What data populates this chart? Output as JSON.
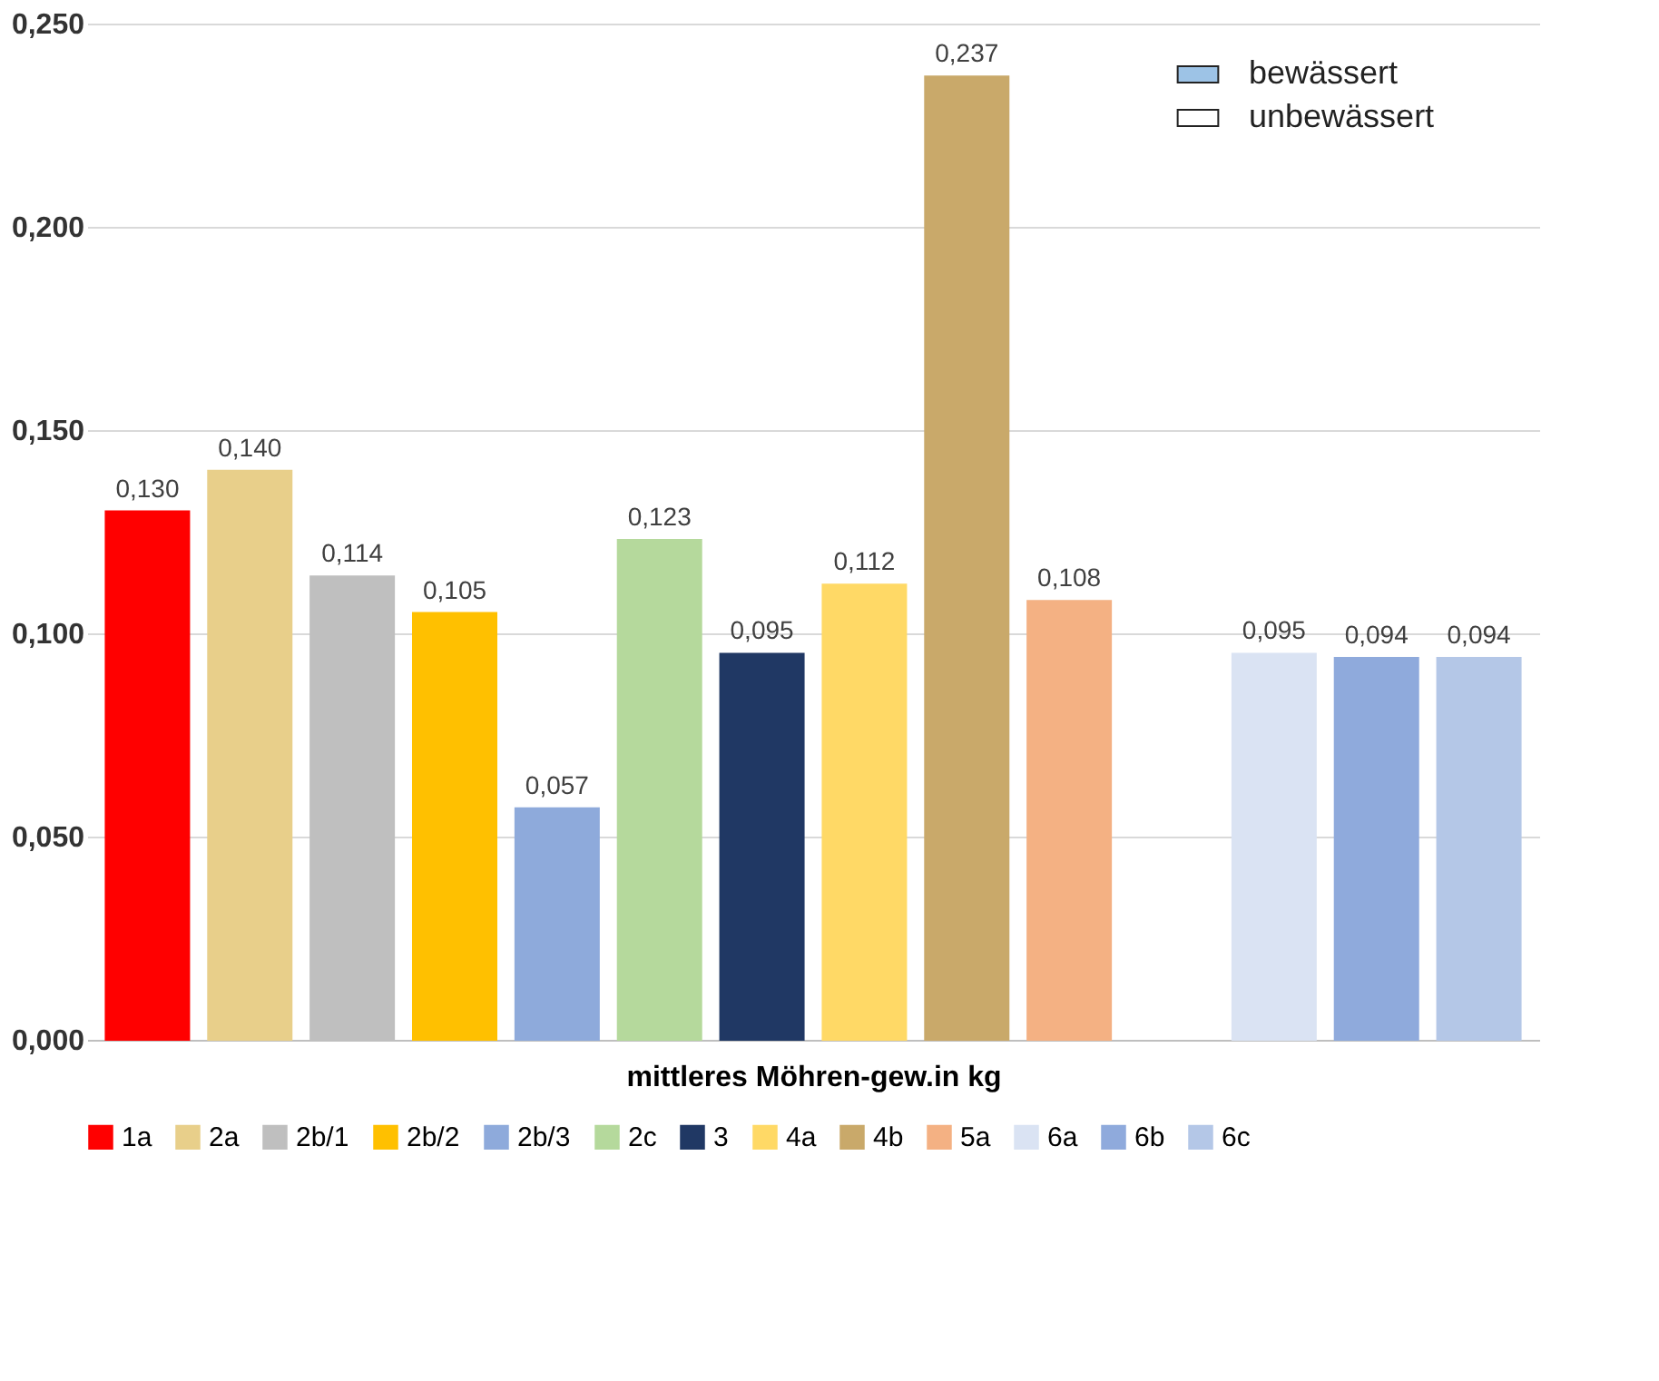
{
  "chart_data": {
    "type": "bar",
    "xlabel": "mittleres Möhren-gew.in kg",
    "categories": [
      null,
      null,
      null,
      null,
      null,
      null,
      null,
      null,
      null,
      null,
      null,
      null,
      null,
      null
    ],
    "series": [
      {
        "name": "1a",
        "color": "#ff0000",
        "values": [
          0.13,
          null,
          null,
          null,
          null,
          null,
          null,
          null,
          null,
          null,
          null,
          null,
          null,
          null
        ],
        "value_labels": [
          "0,130",
          null,
          null,
          null,
          null,
          null,
          null,
          null,
          null,
          null,
          null,
          null,
          null,
          null
        ]
      },
      {
        "name": "2a",
        "color": "#e8cf8a",
        "values": [
          null,
          0.14,
          null,
          null,
          null,
          null,
          null,
          null,
          null,
          null,
          null,
          null,
          null,
          null
        ],
        "value_labels": [
          null,
          "0,140",
          null,
          null,
          null,
          null,
          null,
          null,
          null,
          null,
          null,
          null,
          null,
          null
        ]
      },
      {
        "name": "2b/1",
        "color": "#bfbfbf",
        "values": [
          null,
          null,
          0.114,
          null,
          null,
          null,
          null,
          null,
          null,
          null,
          null,
          null,
          null,
          null
        ],
        "value_labels": [
          null,
          null,
          "0,114",
          null,
          null,
          null,
          null,
          null,
          null,
          null,
          null,
          null,
          null,
          null
        ]
      },
      {
        "name": "2b/2",
        "color": "#ffc000",
        "values": [
          null,
          null,
          null,
          0.105,
          null,
          null,
          null,
          null,
          null,
          null,
          null,
          null,
          null,
          null
        ],
        "value_labels": [
          null,
          null,
          null,
          "0,105",
          null,
          null,
          null,
          null,
          null,
          null,
          null,
          null,
          null,
          null
        ]
      },
      {
        "name": "2b/3",
        "color": "#8eaadb",
        "values": [
          null,
          null,
          null,
          null,
          0.057,
          null,
          null,
          null,
          null,
          null,
          null,
          null,
          null,
          null
        ],
        "value_labels": [
          null,
          null,
          null,
          null,
          "0,057",
          null,
          null,
          null,
          null,
          null,
          null,
          null,
          null,
          null
        ]
      },
      {
        "name": "2c",
        "color": "#b5d99c",
        "values": [
          null,
          null,
          null,
          null,
          null,
          0.123,
          null,
          null,
          null,
          null,
          null,
          null,
          null,
          null
        ],
        "value_labels": [
          null,
          null,
          null,
          null,
          null,
          "0,123",
          null,
          null,
          null,
          null,
          null,
          null,
          null,
          null
        ]
      },
      {
        "name": "3",
        "color": "#203864",
        "values": [
          null,
          null,
          null,
          null,
          null,
          null,
          0.095,
          null,
          null,
          null,
          null,
          null,
          null,
          null
        ],
        "value_labels": [
          null,
          null,
          null,
          null,
          null,
          null,
          "0,095",
          null,
          null,
          null,
          null,
          null,
          null,
          null
        ]
      },
      {
        "name": "4a",
        "color": "#ffd966",
        "values": [
          null,
          null,
          null,
          null,
          null,
          null,
          null,
          0.112,
          null,
          null,
          null,
          null,
          null,
          null
        ],
        "value_labels": [
          null,
          null,
          null,
          null,
          null,
          null,
          null,
          "0,112",
          null,
          null,
          null,
          null,
          null,
          null
        ]
      },
      {
        "name": "4b",
        "color": "#c9a96a",
        "values": [
          null,
          null,
          null,
          null,
          null,
          null,
          null,
          null,
          0.237,
          null,
          null,
          null,
          null,
          null
        ],
        "value_labels": [
          null,
          null,
          null,
          null,
          null,
          null,
          null,
          null,
          "0,237",
          null,
          null,
          null,
          null,
          null
        ]
      },
      {
        "name": "5a",
        "color": "#f4b183",
        "values": [
          null,
          null,
          null,
          null,
          null,
          null,
          null,
          null,
          null,
          0.108,
          null,
          null,
          null,
          null
        ],
        "value_labels": [
          null,
          null,
          null,
          null,
          null,
          null,
          null,
          null,
          null,
          "0,108",
          null,
          null,
          null,
          null
        ]
      },
      {
        "name": "6a",
        "color": "#dae3f3",
        "values": [
          null,
          null,
          null,
          null,
          null,
          null,
          null,
          null,
          null,
          null,
          null,
          0.095,
          null,
          null
        ],
        "value_labels": [
          null,
          null,
          null,
          null,
          null,
          null,
          null,
          null,
          null,
          null,
          null,
          "0,095",
          null,
          null
        ]
      },
      {
        "name": "6b",
        "color": "#8faadc",
        "values": [
          null,
          null,
          null,
          null,
          null,
          null,
          null,
          null,
          null,
          null,
          null,
          null,
          0.094,
          null
        ],
        "value_labels": [
          null,
          null,
          null,
          null,
          null,
          null,
          null,
          null,
          null,
          null,
          null,
          null,
          "0,094",
          null
        ]
      },
      {
        "name": "6c",
        "color": "#b4c7e7",
        "values": [
          null,
          null,
          null,
          null,
          null,
          null,
          null,
          null,
          null,
          null,
          null,
          null,
          null,
          0.094
        ],
        "value_labels": [
          null,
          null,
          null,
          null,
          null,
          null,
          null,
          null,
          null,
          null,
          null,
          null,
          null,
          "0,094"
        ]
      }
    ],
    "ylim": [
      0,
      0.25
    ],
    "yticks": [
      {
        "value": 0,
        "label": "0,000"
      },
      {
        "value": 0.05,
        "label": "0,050"
      },
      {
        "value": 0.1,
        "label": "0,100"
      },
      {
        "value": 0.15,
        "label": "0,150"
      },
      {
        "value": 0.2,
        "label": "0,200"
      },
      {
        "value": 0.25,
        "label": "0,250"
      }
    ],
    "annotations": [
      "bewässert",
      "unbewässert"
    ],
    "grid": "y",
    "legend": "bottom"
  }
}
